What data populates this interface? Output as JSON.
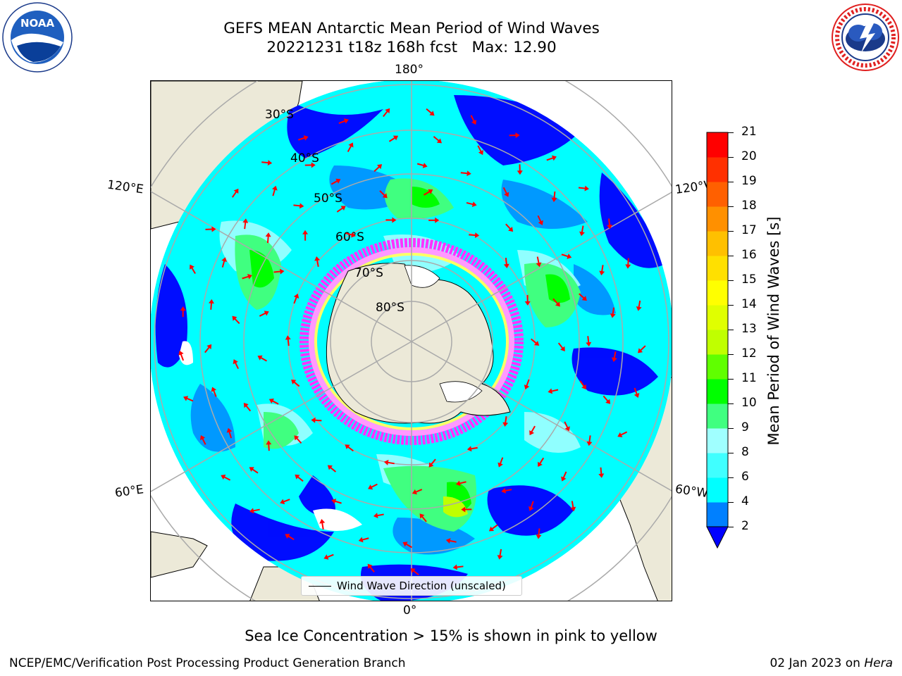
{
  "title": {
    "line1": "GEFS MEAN Antarctic Mean Period of Wind Waves",
    "line2": "20221231 t18z 168h fcst   Max: 12.90"
  },
  "logos": {
    "left": {
      "name": "noaa-logo",
      "text": "NOAA",
      "ring_text": "NATIONAL OCEANIC AND ATMOSPHERIC ADMINISTRATION · U.S. DEPARTMENT OF COMMERCE"
    },
    "right": {
      "name": "nws-logo",
      "ring_text": "NATIONAL WEATHER SERVICE"
    }
  },
  "map": {
    "projection": "south-polar-stereographic",
    "longitude_labels": {
      "top": "180°",
      "bottom": "0°",
      "left_upper": "120°E",
      "left_lower": "60°E",
      "right_upper": "120°W",
      "right_lower": "60°W"
    },
    "latitude_labels": [
      "30°S",
      "40°S",
      "50°S",
      "60°S",
      "70°S",
      "80°S"
    ],
    "colors": {
      "land": "#ece9d8",
      "grid": "#aaaaaa",
      "arrow": "#ff0000",
      "sea_ice": [
        "#ff33ff",
        "#ff99ff",
        "#ffff66"
      ]
    }
  },
  "colorbar": {
    "label": "Mean Period of Wind Waves [s]",
    "ticks": [
      "2",
      "4",
      "6",
      "8",
      "9",
      "10",
      "11",
      "12",
      "13",
      "14",
      "15",
      "16",
      "17",
      "18",
      "19",
      "20",
      "21"
    ],
    "colors": [
      "#0000ff",
      "#0080ff",
      "#00ffff",
      "#40ffff",
      "#a0ffff",
      "#40ff80",
      "#00ff00",
      "#60ff00",
      "#c0ff00",
      "#e0ff00",
      "#ffff00",
      "#ffe000",
      "#ffc000",
      "#ff9000",
      "#ff6000",
      "#ff3000",
      "#ff0000"
    ],
    "extend": "min"
  },
  "legend": {
    "label": "Wind Wave Direction (unscaled)"
  },
  "note": "Sea Ice Concentration > 15% is shown in pink to yellow",
  "footer": {
    "left": "NCEP/EMC/Verification Post Processing Product Generation Branch",
    "right_date": "02 Jan 2023 on ",
    "right_host": "Hera"
  }
}
